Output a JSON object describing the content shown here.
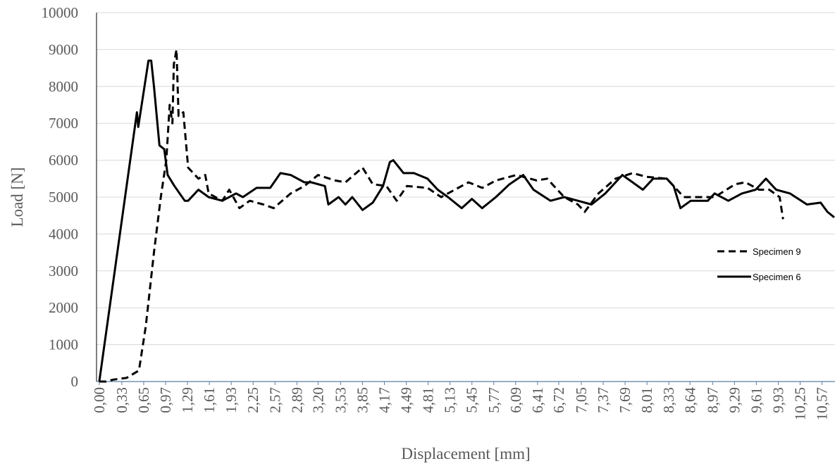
{
  "chart_data": {
    "type": "line",
    "xlabel": "Displacement [mm]",
    "ylabel": "Load [N]",
    "xlim": [
      -0.04,
      10.76
    ],
    "ylim": [
      0,
      10000
    ],
    "yticks": [
      0,
      1000,
      2000,
      3000,
      4000,
      5000,
      6000,
      7000,
      8000,
      9000,
      10000
    ],
    "xticks": [
      {
        "value": 0,
        "label": "0,00"
      },
      {
        "value": 0.33,
        "label": "0,33"
      },
      {
        "value": 0.65,
        "label": "0,65"
      },
      {
        "value": 0.97,
        "label": "0,97"
      },
      {
        "value": 1.29,
        "label": "1,29"
      },
      {
        "value": 1.61,
        "label": "1,61"
      },
      {
        "value": 1.93,
        "label": "1,93"
      },
      {
        "value": 2.25,
        "label": "2,25"
      },
      {
        "value": 2.57,
        "label": "2,57"
      },
      {
        "value": 2.89,
        "label": "2,89"
      },
      {
        "value": 3.2,
        "label": "3,20"
      },
      {
        "value": 3.53,
        "label": "3,53"
      },
      {
        "value": 3.85,
        "label": "3,85"
      },
      {
        "value": 4.17,
        "label": "4,17"
      },
      {
        "value": 4.49,
        "label": "4,49"
      },
      {
        "value": 4.81,
        "label": "4,81"
      },
      {
        "value": 5.13,
        "label": "5,13"
      },
      {
        "value": 5.45,
        "label": "5,45"
      },
      {
        "value": 5.77,
        "label": "5,77"
      },
      {
        "value": 6.09,
        "label": "6,09"
      },
      {
        "value": 6.41,
        "label": "6,41"
      },
      {
        "value": 6.72,
        "label": "6,72"
      },
      {
        "value": 7.05,
        "label": "7,05"
      },
      {
        "value": 7.37,
        "label": "7,37"
      },
      {
        "value": 7.69,
        "label": "7,69"
      },
      {
        "value": 8.01,
        "label": "8,01"
      },
      {
        "value": 8.33,
        "label": "8,33"
      },
      {
        "value": 8.64,
        "label": "8,64"
      },
      {
        "value": 8.97,
        "label": "8,97"
      },
      {
        "value": 9.29,
        "label": "9,29"
      },
      {
        "value": 9.61,
        "label": "9,61"
      },
      {
        "value": 9.93,
        "label": "9,93"
      },
      {
        "value": 10.25,
        "label": "10,25"
      },
      {
        "value": 10.57,
        "label": "10,57"
      }
    ],
    "grid": true,
    "legend": "right",
    "series": [
      {
        "name": "Specimen 9",
        "color": "#000000",
        "line_style": "dashed",
        "x": [
          0,
          0.1,
          0.2,
          0.4,
          0.58,
          0.68,
          0.8,
          0.9,
          0.98,
          1.03,
          1.07,
          1.09,
          1.13,
          1.16,
          1.23,
          1.3,
          1.45,
          1.55,
          1.6,
          1.8,
          1.9,
          2.05,
          2.2,
          2.4,
          2.55,
          2.8,
          3.0,
          3.2,
          3.45,
          3.6,
          3.85,
          4.0,
          4.2,
          4.35,
          4.5,
          4.8,
          5.0,
          5.2,
          5.4,
          5.6,
          5.8,
          6.1,
          6.4,
          6.55,
          6.8,
          7.0,
          7.1,
          7.3,
          7.55,
          7.8,
          8.0,
          8.3,
          8.55,
          8.8,
          9.0,
          9.3,
          9.45,
          9.65,
          9.8,
          9.95,
          10.0
        ],
        "values": [
          0,
          0,
          50,
          100,
          300,
          1500,
          3500,
          5000,
          6000,
          7500,
          7000,
          8600,
          9000,
          7200,
          7300,
          5800,
          5500,
          5600,
          5100,
          4900,
          5200,
          4700,
          4900,
          4800,
          4700,
          5100,
          5300,
          5600,
          5450,
          5400,
          5800,
          5350,
          5300,
          4900,
          5300,
          5250,
          5000,
          5200,
          5400,
          5250,
          5450,
          5600,
          5450,
          5500,
          5000,
          4800,
          4600,
          5100,
          5500,
          5650,
          5550,
          5500,
          5000,
          5000,
          5000,
          5350,
          5400,
          5200,
          5200,
          5000,
          4400
        ]
      },
      {
        "name": "Specimen 6",
        "color": "#000000",
        "line_style": "solid",
        "x": [
          0,
          0.55,
          0.57,
          0.72,
          0.76,
          0.8,
          0.88,
          0.95,
          1.0,
          1.1,
          1.25,
          1.3,
          1.45,
          1.6,
          1.8,
          2.0,
          2.1,
          2.3,
          2.5,
          2.65,
          2.8,
          3.0,
          3.1,
          3.3,
          3.35,
          3.5,
          3.6,
          3.7,
          3.85,
          4.0,
          4.15,
          4.25,
          4.3,
          4.45,
          4.6,
          4.8,
          4.95,
          5.1,
          5.3,
          5.45,
          5.6,
          5.8,
          6.0,
          6.2,
          6.35,
          6.6,
          6.8,
          7.0,
          7.2,
          7.4,
          7.65,
          7.8,
          7.95,
          8.1,
          8.3,
          8.4,
          8.5,
          8.65,
          8.9,
          9.0,
          9.2,
          9.4,
          9.6,
          9.75,
          9.9,
          10.1,
          10.35,
          10.55,
          10.65,
          10.75
        ],
        "values": [
          0,
          7300,
          6900,
          8700,
          8700,
          8000,
          6400,
          6300,
          5600,
          5300,
          4900,
          4900,
          5200,
          5000,
          4900,
          5100,
          5000,
          5250,
          5250,
          5650,
          5600,
          5400,
          5400,
          5300,
          4800,
          5000,
          4800,
          5000,
          4650,
          4850,
          5300,
          5950,
          6000,
          5650,
          5650,
          5500,
          5200,
          5000,
          4700,
          4950,
          4700,
          5000,
          5350,
          5600,
          5200,
          4900,
          5000,
          4900,
          4800,
          5100,
          5600,
          5400,
          5200,
          5500,
          5500,
          5300,
          4700,
          4900,
          4900,
          5100,
          4900,
          5100,
          5200,
          5500,
          5200,
          5100,
          4800,
          4850,
          4600,
          4450
        ]
      }
    ]
  }
}
